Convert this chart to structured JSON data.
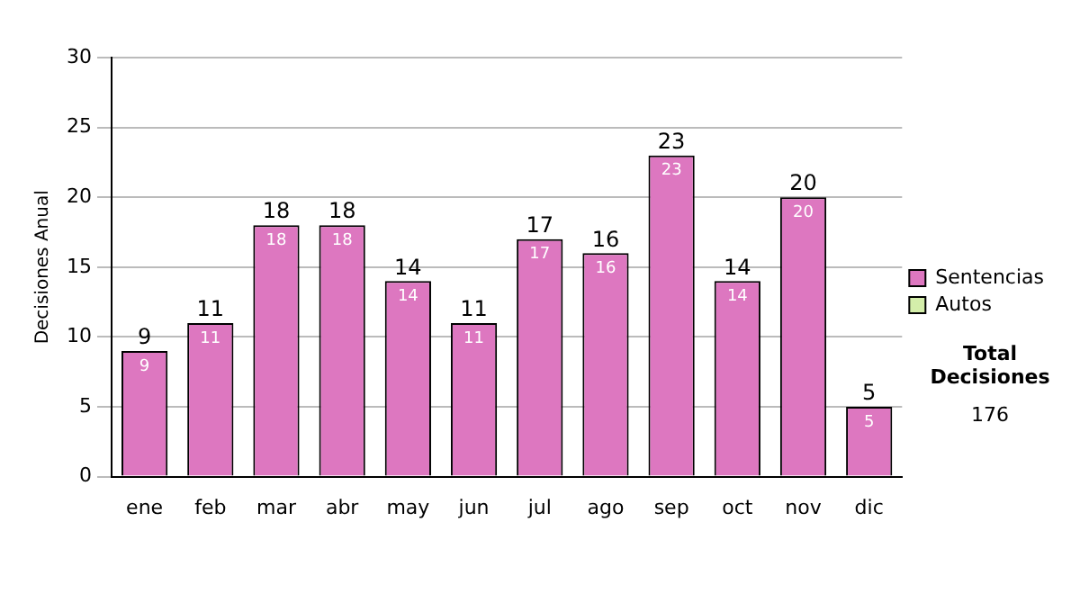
{
  "chart_data": {
    "type": "bar",
    "stacked": true,
    "ylabel": "Decisiones Anual",
    "categories": [
      "ene",
      "feb",
      "mar",
      "abr",
      "may",
      "jun",
      "jul",
      "ago",
      "sep",
      "oct",
      "nov",
      "dic"
    ],
    "series": [
      {
        "name": "Sentencias",
        "color": "#dd77c0",
        "values": [
          9,
          11,
          18,
          18,
          14,
          11,
          17,
          16,
          23,
          14,
          20,
          5
        ],
        "value_labels": [
          "9",
          "11",
          "18",
          "18",
          "14",
          "11",
          "17",
          "16",
          "23",
          "14",
          "20",
          "5"
        ]
      },
      {
        "name": "Autos",
        "color": "#d4eeaa",
        "values": [
          0,
          0,
          0,
          0,
          0,
          0,
          0,
          0,
          0,
          0,
          0,
          0
        ]
      }
    ],
    "totals": [
      "9",
      "11",
      "18",
      "18",
      "14",
      "11",
      "17",
      "16",
      "23",
      "14",
      "20",
      "5"
    ],
    "ylim": [
      0,
      30
    ],
    "yticks": [
      0,
      5,
      10,
      15,
      20,
      25,
      30
    ],
    "grid": "y",
    "legend": "right",
    "annotations": [
      "Total Decisiones",
      "176"
    ]
  }
}
